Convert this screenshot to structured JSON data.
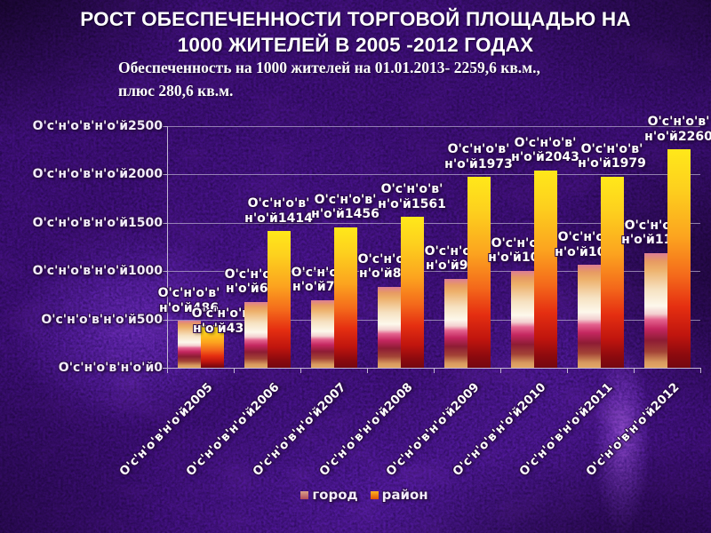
{
  "slide": {
    "title_line1": "РОСТ ОБЕСПЕЧЕННОСТИ ТОРГОВОЙ ПЛОЩАДЬЮ НА",
    "title_line2": "1000 ЖИТЕЛЕЙ В 2005 -2012 ГОДАХ",
    "subtitle_line1": "Обеспеченность на 1000 жителей на 01.01.2013- 2259,6 кв.м.,",
    "subtitle_line2": "плюс 280,6 кв.м."
  },
  "chart_data": {
    "type": "bar",
    "title": "",
    "xlabel": "",
    "ylabel": "",
    "categories": [
      "2005",
      "2006",
      "2007",
      "2008",
      "2009",
      "2010",
      "2011",
      "2012"
    ],
    "category_label_prefix": "О'с'н'о'в'н'о'й",
    "y_tick_label_prefix": "О'с'н'о'в'н'о'й",
    "value_label_line1": "О'с'н'о'в'",
    "value_label_line2_prefix": "н'о'й",
    "y_ticks": [
      0,
      500,
      1000,
      1500,
      2000,
      2500
    ],
    "ylim": [
      0,
      2500
    ],
    "grid": true,
    "legend_position": "bottom",
    "series": [
      {
        "key": "city",
        "name": "город",
        "values": [
          486,
          681,
          701,
          840,
          920,
          1005,
          1066,
          1189
        ],
        "gradient": [
          "#dd7e95 0%",
          "#e79a62 7%",
          "#edb06a 14%",
          "#f6e2c2 32%",
          "#fdf8ec 46%",
          "#f3cfd0 53%",
          "#e4638f 58%",
          "#c42760 66%",
          "#8e1c34 76%",
          "#a34336 86%",
          "#d89a5f 95%",
          "#e3a866 100%"
        ],
        "legend_chip": [
          "#daa187",
          "#b04a5c"
        ]
      },
      {
        "key": "district",
        "name": "район",
        "values": [
          438,
          1414,
          1456,
          1561,
          1973,
          2043,
          1979,
          2260
        ],
        "gradient": [
          "#ffe81a 0%",
          "#fdd01e 18%",
          "#fca41f 40%",
          "#f4691b 58%",
          "#e52f11 72%",
          "#c0150e 85%",
          "#8d0a0e 94%",
          "#740710 100%"
        ],
        "legend_chip": [
          "#ffb41e",
          "#e05206"
        ]
      }
    ],
    "colors": {
      "background": "#3b1164",
      "text": "#ffffff",
      "gridline": "#c3b8d4"
    }
  }
}
